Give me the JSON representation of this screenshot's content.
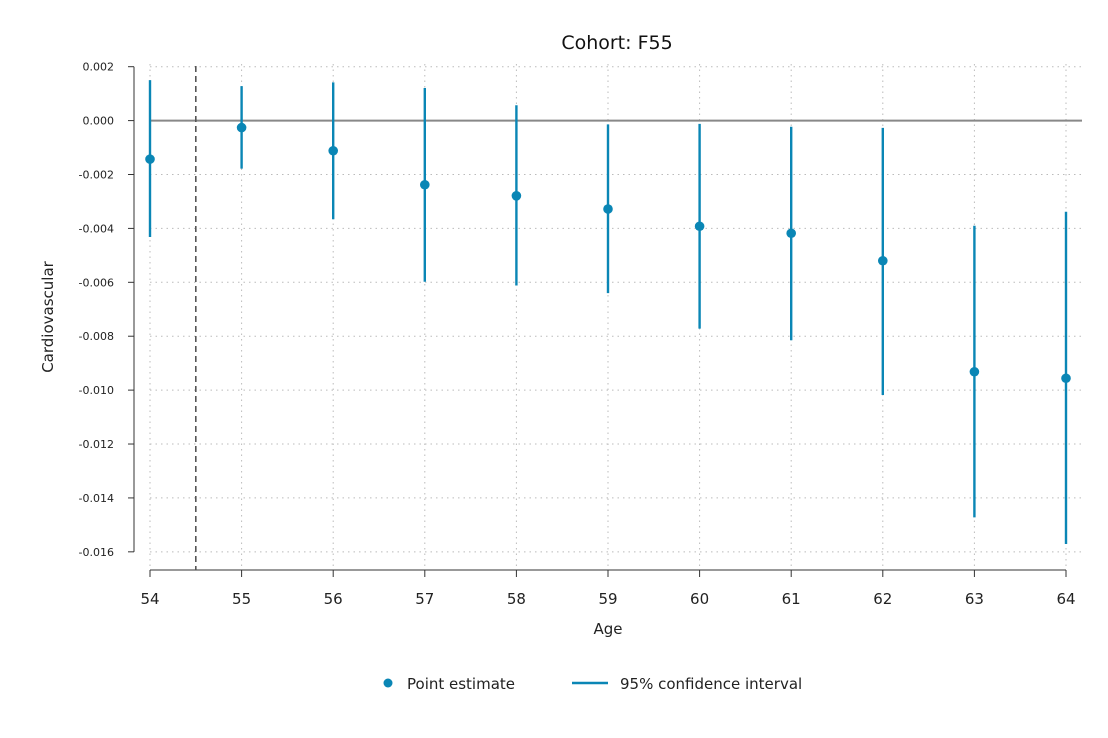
{
  "chart_data": {
    "type": "scatter",
    "title": "Cohort: F55",
    "xlabel": "Age",
    "ylabel": "Cardiovascular",
    "x": [
      54,
      55,
      56,
      57,
      58,
      59,
      60,
      61,
      62,
      63,
      64
    ],
    "xlim": [
      54,
      64
    ],
    "ylim": [
      -0.0166,
      0.0021
    ],
    "yticks": [
      "0.002",
      "0.000",
      "-0.002",
      "-0.004",
      "-0.006",
      "-0.008",
      "-0.010",
      "-0.012",
      "-0.014",
      "-0.016"
    ],
    "ytick_values": [
      0.002,
      0.0,
      -0.002,
      -0.004,
      -0.006,
      -0.008,
      -0.01,
      -0.012,
      -0.014,
      -0.016
    ],
    "xticks": [
      "54",
      "55",
      "56",
      "57",
      "58",
      "59",
      "60",
      "61",
      "62",
      "63",
      "64"
    ],
    "series": [
      {
        "name": "Point estimate",
        "type": "point",
        "values": [
          -0.00143,
          -0.00026,
          -0.00112,
          -0.00238,
          -0.00279,
          -0.00328,
          -0.00392,
          -0.00418,
          -0.0052,
          -0.00932,
          -0.00956
        ]
      },
      {
        "name": "95% confidence interval",
        "type": "errorbar",
        "lower": [
          -0.00432,
          -0.00178,
          -0.00366,
          -0.00598,
          -0.00612,
          -0.0064,
          -0.00772,
          -0.00815,
          -0.01018,
          -0.01472,
          -0.01571
        ],
        "upper": [
          0.0015,
          0.00128,
          0.00142,
          0.00121,
          0.00057,
          -0.00014,
          -0.00012,
          -0.00023,
          -0.00027,
          -0.0039,
          -0.00338
        ]
      }
    ],
    "reference_line_y": 0.0,
    "reference_line_x": 54.5,
    "grid": true,
    "legend_position": "bottom-center",
    "colors": {
      "series": "#0a86b5",
      "zero_line": "#888888",
      "grid": "#bbbbbb",
      "axis": "#333333"
    }
  }
}
